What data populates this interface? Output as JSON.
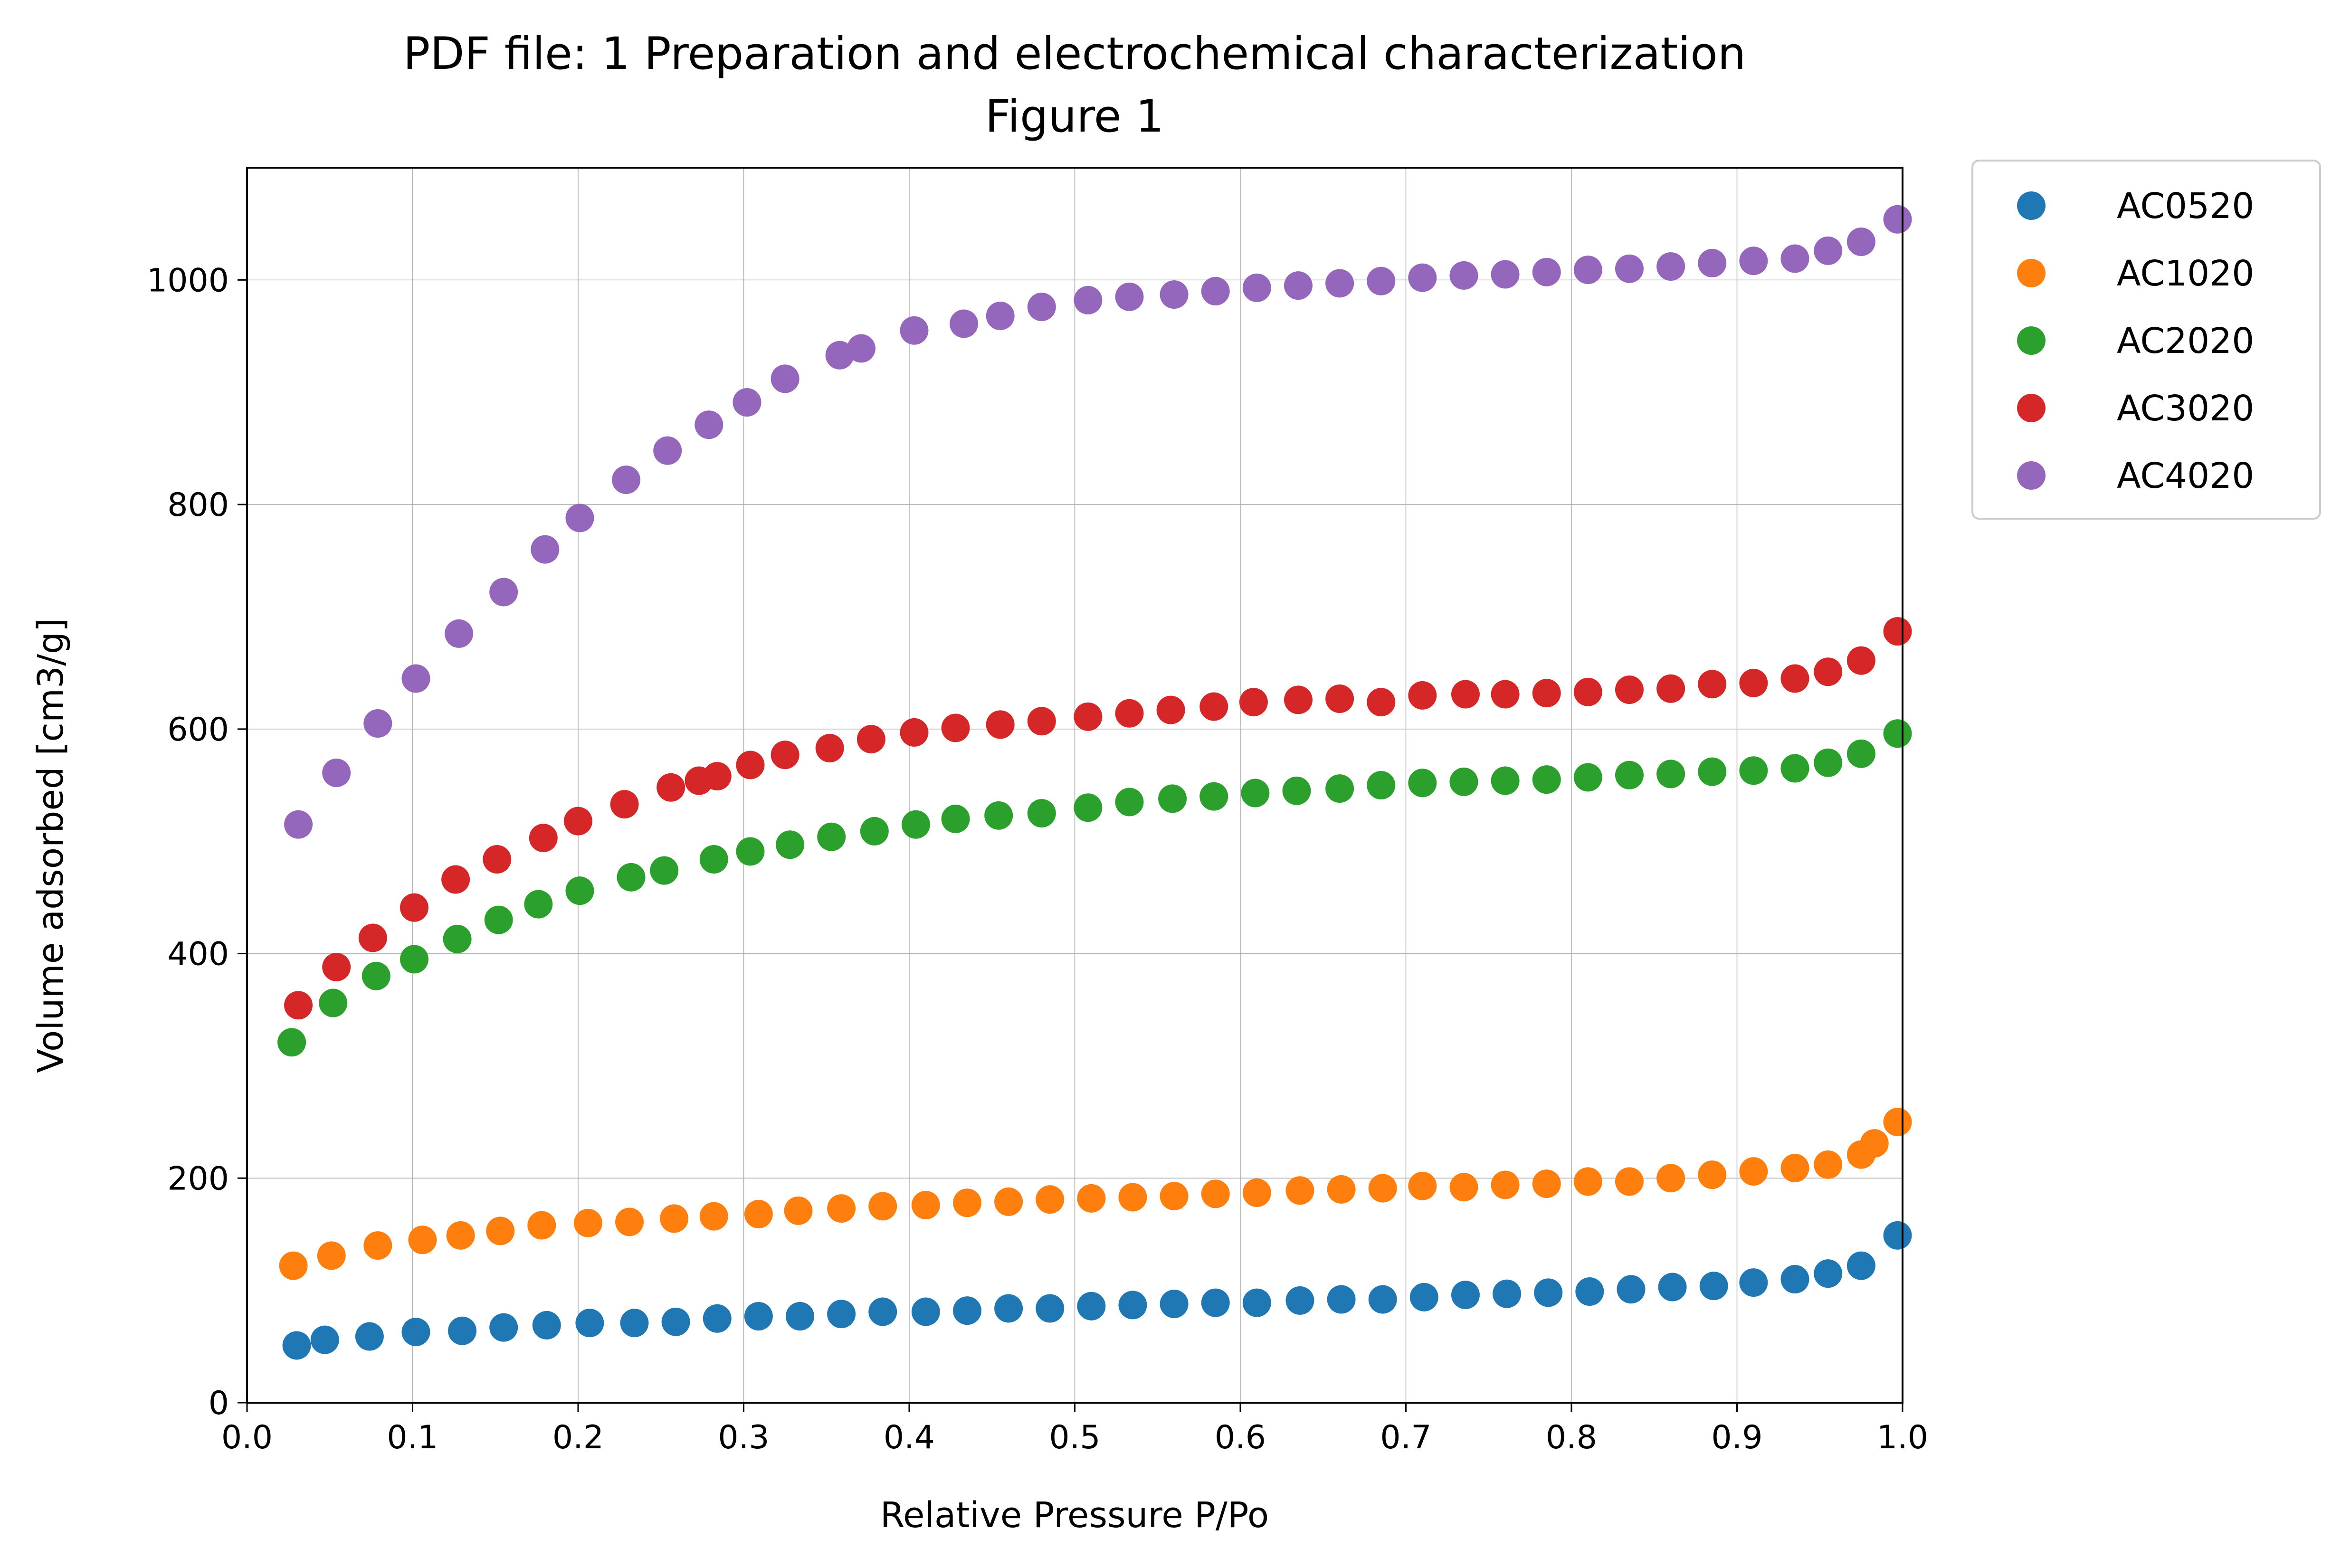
{
  "chart_data": {
    "type": "scatter",
    "title": "PDF file: 1 Preparation and electrochemical characterization",
    "subtitle": "Figure 1",
    "xlabel": "Relative Pressure P/Po",
    "ylabel": "Volume adsorbed [cm3/g]",
    "xlim": [
      0.0,
      1.0
    ],
    "ylim": [
      0,
      1100
    ],
    "xticks": [
      0.0,
      0.1,
      0.2,
      0.3,
      0.4,
      0.5,
      0.6,
      0.7,
      0.8,
      0.9,
      1.0
    ],
    "xtick_labels": [
      "0.0",
      "0.1",
      "0.2",
      "0.3",
      "0.4",
      "0.5",
      "0.6",
      "0.7",
      "0.8",
      "0.9",
      "1.0"
    ],
    "yticks": [
      0,
      200,
      400,
      600,
      800,
      1000
    ],
    "ytick_labels": [
      "0",
      "200",
      "400",
      "600",
      "800",
      "1000"
    ],
    "grid": true,
    "legend_position": "outside-top-right",
    "series": [
      {
        "name": "AC0520",
        "color": "#1f77b4",
        "x": [
          0.03,
          0.047,
          0.074,
          0.102,
          0.13,
          0.155,
          0.181,
          0.207,
          0.234,
          0.259,
          0.284,
          0.309,
          0.334,
          0.359,
          0.384,
          0.41,
          0.435,
          0.46,
          0.485,
          0.51,
          0.535,
          0.56,
          0.585,
          0.61,
          0.636,
          0.661,
          0.686,
          0.711,
          0.736,
          0.761,
          0.786,
          0.811,
          0.836,
          0.861,
          0.886,
          0.91,
          0.935,
          0.955,
          0.975,
          0.997
        ],
        "y": [
          51,
          56,
          59,
          63,
          64,
          67,
          69,
          71,
          71,
          72,
          75,
          77,
          77,
          79,
          81,
          81,
          82,
          84,
          84,
          86,
          87,
          88,
          89,
          89,
          91,
          92,
          92,
          94,
          96,
          97,
          98,
          99,
          101,
          103,
          104,
          107,
          110,
          115,
          122,
          149
        ]
      },
      {
        "name": "AC1020",
        "color": "#ff7f0e",
        "x": [
          0.028,
          0.051,
          0.079,
          0.106,
          0.129,
          0.153,
          0.178,
          0.206,
          0.231,
          0.258,
          0.282,
          0.309,
          0.333,
          0.359,
          0.384,
          0.41,
          0.435,
          0.46,
          0.485,
          0.51,
          0.535,
          0.56,
          0.585,
          0.61,
          0.636,
          0.661,
          0.686,
          0.71,
          0.735,
          0.76,
          0.785,
          0.81,
          0.835,
          0.86,
          0.885,
          0.91,
          0.935,
          0.955,
          0.975,
          0.983,
          0.997
        ],
        "y": [
          122,
          131,
          140,
          145,
          149,
          153,
          158,
          160,
          161,
          164,
          166,
          168,
          171,
          173,
          175,
          176,
          178,
          179,
          181,
          182,
          183,
          184,
          186,
          187,
          189,
          190,
          191,
          193,
          192,
          194,
          195,
          197,
          197,
          200,
          203,
          206,
          209,
          212,
          221,
          231,
          250
        ]
      },
      {
        "name": "AC2020",
        "color": "#2ca02c",
        "x": [
          0.027,
          0.052,
          0.078,
          0.101,
          0.127,
          0.152,
          0.176,
          0.201,
          0.232,
          0.252,
          0.282,
          0.304,
          0.328,
          0.353,
          0.379,
          0.404,
          0.428,
          0.454,
          0.48,
          0.508,
          0.533,
          0.559,
          0.584,
          0.609,
          0.634,
          0.66,
          0.685,
          0.71,
          0.735,
          0.76,
          0.785,
          0.81,
          0.835,
          0.86,
          0.885,
          0.91,
          0.935,
          0.955,
          0.975,
          0.997
        ],
        "y": [
          321,
          356,
          380,
          395,
          413,
          430,
          444,
          456,
          468,
          474,
          484,
          491,
          497,
          504,
          509,
          515,
          520,
          523,
          525,
          530,
          535,
          538,
          540,
          543,
          545,
          547,
          550,
          552,
          553,
          554,
          555,
          557,
          559,
          560,
          562,
          563,
          565,
          570,
          578,
          596
        ]
      },
      {
        "name": "AC3020",
        "color": "#d62728",
        "x": [
          0.031,
          0.054,
          0.076,
          0.101,
          0.126,
          0.151,
          0.179,
          0.2,
          0.228,
          0.256,
          0.273,
          0.284,
          0.304,
          0.325,
          0.352,
          0.377,
          0.403,
          0.428,
          0.455,
          0.48,
          0.508,
          0.533,
          0.558,
          0.584,
          0.608,
          0.635,
          0.66,
          0.685,
          0.71,
          0.736,
          0.76,
          0.785,
          0.81,
          0.835,
          0.86,
          0.885,
          0.91,
          0.935,
          0.955,
          0.975,
          0.997
        ],
        "y": [
          354,
          388,
          414,
          441,
          466,
          484,
          503,
          518,
          533,
          548,
          554,
          558,
          568,
          577,
          583,
          591,
          597,
          601,
          604,
          607,
          611,
          614,
          617,
          620,
          624,
          626,
          627,
          624,
          630,
          631,
          631,
          632,
          633,
          635,
          636,
          640,
          641,
          645,
          651,
          661,
          687
        ]
      },
      {
        "name": "AC4020",
        "color": "#9467bd",
        "x": [
          0.031,
          0.054,
          0.079,
          0.102,
          0.128,
          0.155,
          0.18,
          0.201,
          0.229,
          0.254,
          0.279,
          0.302,
          0.325,
          0.358,
          0.371,
          0.403,
          0.433,
          0.455,
          0.48,
          0.508,
          0.533,
          0.56,
          0.585,
          0.61,
          0.635,
          0.66,
          0.685,
          0.71,
          0.735,
          0.76,
          0.785,
          0.81,
          0.835,
          0.86,
          0.885,
          0.91,
          0.935,
          0.955,
          0.975,
          0.997
        ],
        "y": [
          515,
          561,
          605,
          645,
          685,
          722,
          760,
          788,
          822,
          848,
          871,
          891,
          912,
          933,
          939,
          955,
          961,
          968,
          976,
          982,
          985,
          987,
          990,
          993,
          995,
          997,
          999,
          1002,
          1004,
          1005,
          1007,
          1009,
          1010,
          1012,
          1015,
          1017,
          1019,
          1026,
          1034,
          1054
        ]
      }
    ]
  }
}
